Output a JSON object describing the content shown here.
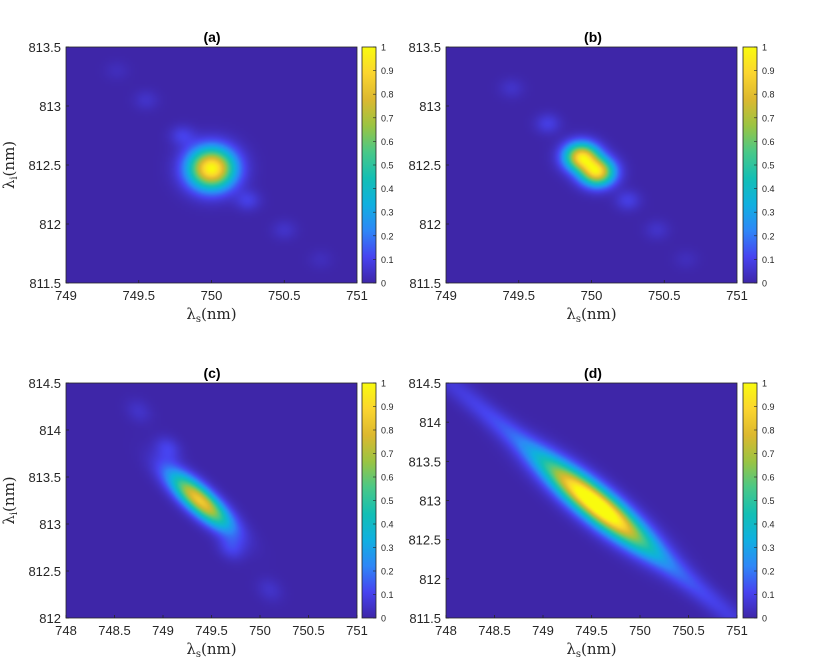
{
  "colors": {
    "colormap": [
      "#3e26a8",
      "#4743f0",
      "#2e87f7",
      "#10b0e0",
      "#13bfb4",
      "#4ac887",
      "#9bc442",
      "#dcb82f",
      "#fbd52f",
      "#f9fb0e"
    ],
    "axis": "#262626"
  },
  "chart_data": [
    {
      "type": "heatmap",
      "title": "(a)",
      "xlabel": "λs(nm)",
      "ylabel": "λi(nm)",
      "xlim": [
        749,
        751
      ],
      "ylim": [
        811.5,
        813.5
      ],
      "xticks": [
        "749",
        "749.5",
        "750",
        "750.5",
        "751"
      ],
      "yticks": [
        "811.5",
        "812",
        "812.5",
        "813",
        "813.5"
      ],
      "colorbar": {
        "range": [
          0,
          1
        ],
        "ticks": [
          "0",
          "0.1",
          "0.2",
          "0.3",
          "0.4",
          "0.5",
          "0.6",
          "0.7",
          "0.8",
          "0.9",
          "1"
        ]
      },
      "peaks": [
        {
          "x": 750.0,
          "y": 812.47,
          "amp": 1.0,
          "sx": 0.11,
          "sy": 0.12,
          "rot": 0
        },
        {
          "x": 749.8,
          "y": 812.75,
          "amp": 0.09,
          "sx": 0.06,
          "sy": 0.06,
          "rot": 0
        },
        {
          "x": 749.55,
          "y": 813.05,
          "amp": 0.05,
          "sx": 0.06,
          "sy": 0.06,
          "rot": 0
        },
        {
          "x": 749.35,
          "y": 813.3,
          "amp": 0.03,
          "sx": 0.06,
          "sy": 0.06,
          "rot": 0
        },
        {
          "x": 750.25,
          "y": 812.2,
          "amp": 0.09,
          "sx": 0.06,
          "sy": 0.06,
          "rot": 0
        },
        {
          "x": 750.5,
          "y": 811.95,
          "amp": 0.05,
          "sx": 0.06,
          "sy": 0.06,
          "rot": 0
        },
        {
          "x": 750.75,
          "y": 811.7,
          "amp": 0.03,
          "sx": 0.06,
          "sy": 0.06,
          "rot": 0
        }
      ]
    },
    {
      "type": "heatmap",
      "title": "(b)",
      "xlabel": "λs(nm)",
      "ylabel": "",
      "xlim": [
        749,
        751
      ],
      "ylim": [
        811.5,
        813.5
      ],
      "xticks": [
        "749",
        "749.5",
        "750",
        "750.5",
        "751"
      ],
      "yticks": [
        "811.5",
        "812",
        "812.5",
        "813",
        "813.5"
      ],
      "colorbar": {
        "range": [
          0,
          1
        ],
        "ticks": [
          "0",
          "0.1",
          "0.2",
          "0.3",
          "0.4",
          "0.5",
          "0.6",
          "0.7",
          "0.8",
          "0.9",
          "1"
        ]
      },
      "peaks": [
        {
          "x": 749.93,
          "y": 812.57,
          "amp": 0.88,
          "sx": 0.08,
          "sy": 0.08,
          "rot": 0
        },
        {
          "x": 750.04,
          "y": 812.44,
          "amp": 0.88,
          "sx": 0.08,
          "sy": 0.08,
          "rot": 0
        },
        {
          "x": 749.7,
          "y": 812.85,
          "amp": 0.09,
          "sx": 0.06,
          "sy": 0.06,
          "rot": 0
        },
        {
          "x": 749.45,
          "y": 813.15,
          "amp": 0.05,
          "sx": 0.06,
          "sy": 0.06,
          "rot": 0
        },
        {
          "x": 750.25,
          "y": 812.2,
          "amp": 0.09,
          "sx": 0.06,
          "sy": 0.06,
          "rot": 0
        },
        {
          "x": 750.45,
          "y": 811.95,
          "amp": 0.05,
          "sx": 0.06,
          "sy": 0.06,
          "rot": 0
        },
        {
          "x": 750.65,
          "y": 811.7,
          "amp": 0.03,
          "sx": 0.06,
          "sy": 0.06,
          "rot": 0
        }
      ]
    },
    {
      "type": "heatmap",
      "title": "(c)",
      "xlabel": "λs(nm)",
      "ylabel": "λi(nm)",
      "xlim": [
        748,
        751
      ],
      "ylim": [
        812,
        814.5
      ],
      "xticks": [
        "748",
        "748.5",
        "749",
        "749.5",
        "750",
        "750.5",
        "751"
      ],
      "yticks": [
        "812",
        "812.5",
        "813",
        "813.5",
        "814",
        "814.5"
      ],
      "colorbar": {
        "range": [
          0,
          1
        ],
        "ticks": [
          "0",
          "0.1",
          "0.2",
          "0.3",
          "0.4",
          "0.5",
          "0.6",
          "0.7",
          "0.8",
          "0.9",
          "1"
        ]
      },
      "peaks": [
        {
          "x": 749.38,
          "y": 813.25,
          "amp": 0.85,
          "sx": 0.28,
          "sy": 0.09,
          "rot": -0.75
        },
        {
          "x": 749.05,
          "y": 813.8,
          "amp": 0.1,
          "sx": 0.1,
          "sy": 0.08,
          "rot": -0.75
        },
        {
          "x": 748.75,
          "y": 814.2,
          "amp": 0.05,
          "sx": 0.1,
          "sy": 0.08,
          "rot": -0.75
        },
        {
          "x": 749.7,
          "y": 812.75,
          "amp": 0.1,
          "sx": 0.1,
          "sy": 0.08,
          "rot": -0.75
        },
        {
          "x": 750.1,
          "y": 812.3,
          "amp": 0.05,
          "sx": 0.1,
          "sy": 0.08,
          "rot": -0.75
        }
      ]
    },
    {
      "type": "heatmap",
      "title": "(d)",
      "xlabel": "λs(nm)",
      "ylabel": "",
      "xlim": [
        748,
        751
      ],
      "ylim": [
        811.5,
        814.5
      ],
      "xticks": [
        "748",
        "748.5",
        "749",
        "749.5",
        "750",
        "750.5",
        "751"
      ],
      "yticks": [
        "811.5",
        "812",
        "812.5",
        "813",
        "813.5",
        "814",
        "814.5"
      ],
      "colorbar": {
        "range": [
          0,
          1
        ],
        "ticks": [
          "0",
          "0.1",
          "0.2",
          "0.3",
          "0.4",
          "0.5",
          "0.6",
          "0.7",
          "0.8",
          "0.9",
          "1"
        ]
      },
      "peaks": [
        {
          "x": 749.55,
          "y": 812.95,
          "amp": 0.97,
          "sx": 0.5,
          "sy": 0.13,
          "rot": -0.8
        },
        {
          "x": 749.55,
          "y": 812.95,
          "amp": 0.18,
          "sx": 1.6,
          "sy": 0.09,
          "rot": -0.8
        }
      ]
    }
  ]
}
